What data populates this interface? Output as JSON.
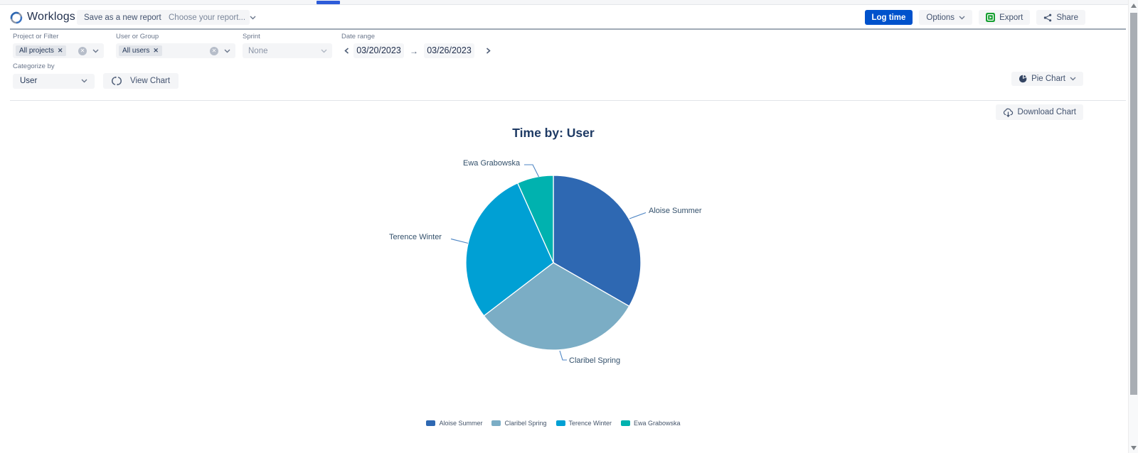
{
  "app": {
    "title": "Worklogs"
  },
  "header": {
    "save_report_label": "Save as a new report",
    "choose_report_placeholder": "Choose your report...",
    "log_time_label": "Log time",
    "options_label": "Options",
    "export_label": "Export",
    "share_label": "Share"
  },
  "filters": {
    "project": {
      "label": "Project or Filter",
      "tag": "All projects"
    },
    "user": {
      "label": "User or Group",
      "tag": "All users"
    },
    "sprint": {
      "label": "Sprint",
      "value": "None"
    },
    "date_range": {
      "label": "Date range",
      "start": "03/20/2023",
      "end": "03/26/2023",
      "arrow": "→"
    }
  },
  "categorize": {
    "label": "Categorize by",
    "value": "User",
    "view_chart_label": "View Chart"
  },
  "chart_type_selector": {
    "value": "Pie Chart"
  },
  "download_chart_label": "Download Chart",
  "colors": {
    "primary_blue": "#0052cc",
    "button_gray": "#f4f5f7",
    "export_icon_green": "#18a033",
    "title_navy": "#1e3a64",
    "leader_line_blue": "#4d85c4",
    "top_progress_blue": "#2d5cd9"
  },
  "chart_data": {
    "type": "pie",
    "title": "Time by: User",
    "categories": [
      "Aloise Summer",
      "Claribel Spring",
      "Terence Winter",
      "Ewa Grabowska"
    ],
    "values": [
      33.3,
      31.3,
      28.7,
      6.7
    ],
    "unit": "percent_of_total_time",
    "colors": [
      "#2e68b2",
      "#7badc5",
      "#00a0d4",
      "#00b2af"
    ],
    "start_angle_deg": 0,
    "direction": "clockwise",
    "legend_position": "bottom",
    "labels_style": "outside-callout"
  }
}
